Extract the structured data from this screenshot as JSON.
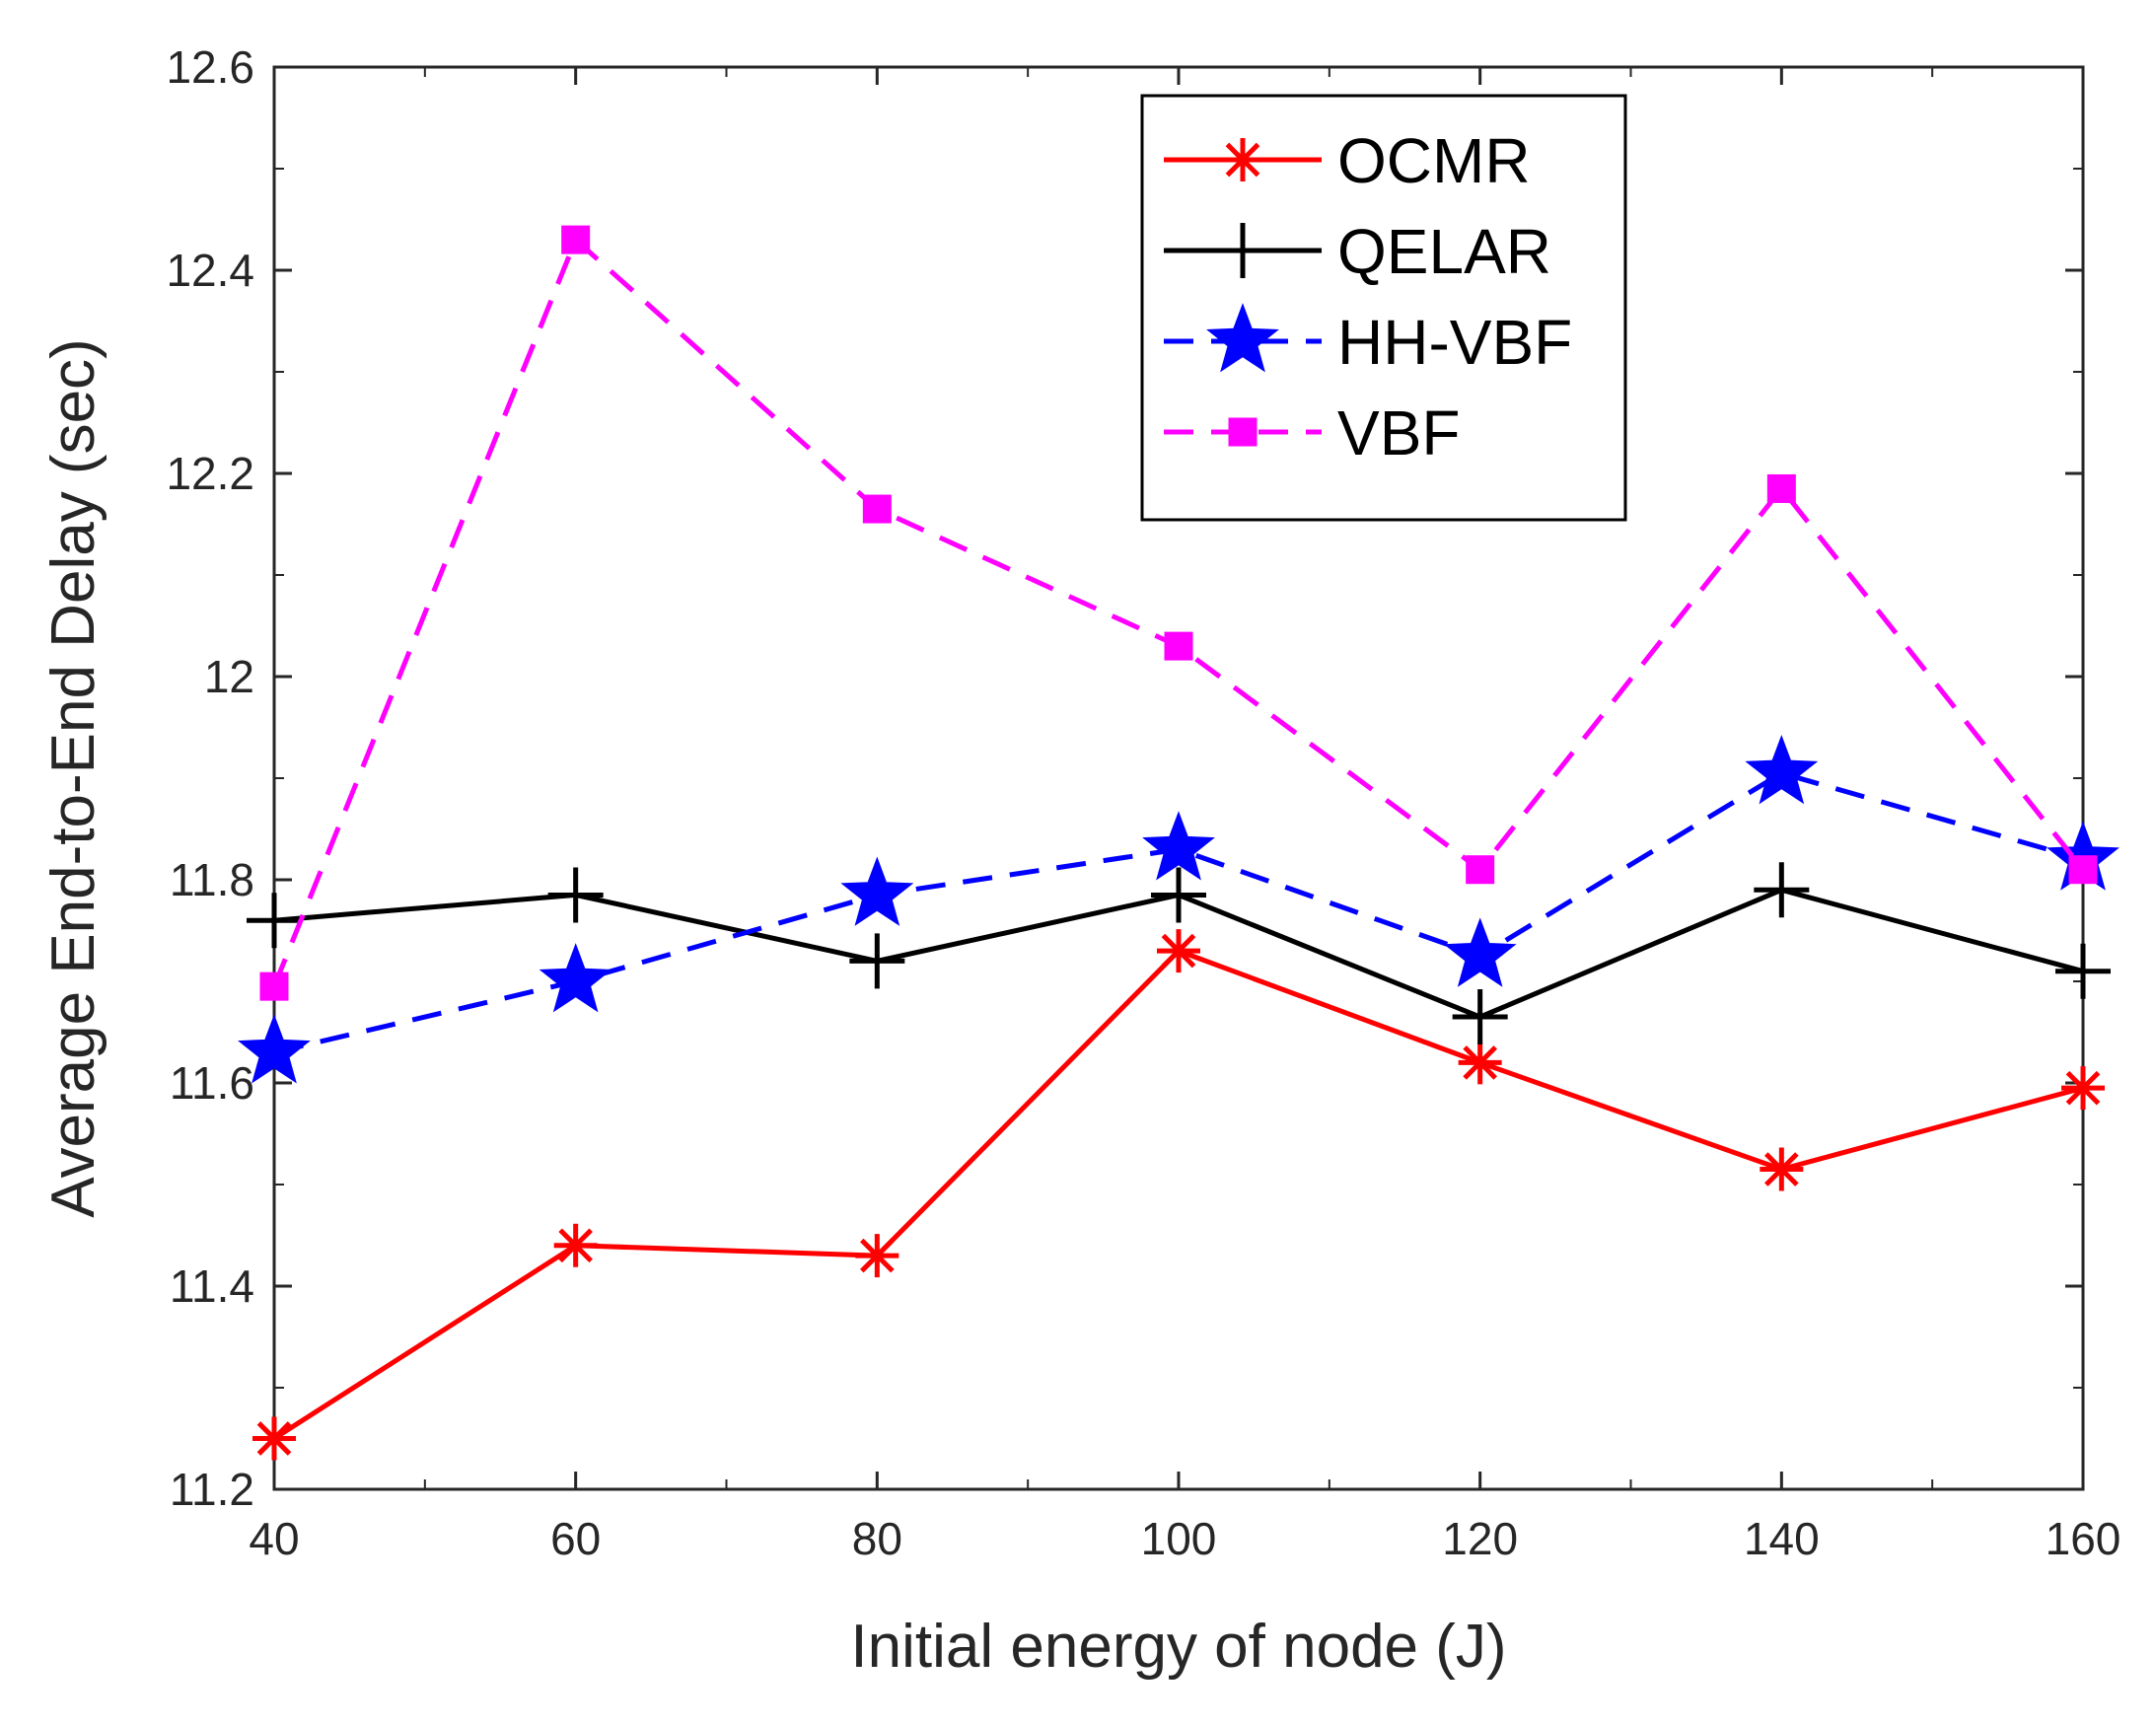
{
  "chart_data": {
    "type": "line",
    "xlabel": "Initial energy of node (J)",
    "ylabel": "Average End-to-End Delay (sec)",
    "xlim": [
      40,
      160
    ],
    "ylim": [
      11.2,
      12.6
    ],
    "x_ticks": [
      40,
      60,
      80,
      100,
      120,
      140,
      160
    ],
    "x_tick_labels": [
      "40",
      "60",
      "80",
      "100",
      "120",
      "140",
      "160"
    ],
    "y_ticks": [
      11.2,
      11.4,
      11.6,
      11.8,
      12.0,
      12.2,
      12.4,
      12.6
    ],
    "y_tick_labels": [
      "11.2",
      "11.4",
      "11.6",
      "11.8",
      "12",
      "12.2",
      "12.4",
      "12.6"
    ],
    "grid": false,
    "legend_position": "top-right",
    "x": [
      40,
      60,
      80,
      100,
      120,
      140,
      160
    ],
    "series": [
      {
        "name": "OCMR",
        "color": "#ff0000",
        "marker": "asterisk",
        "line": "solid",
        "values": [
          11.25,
          11.44,
          11.43,
          11.73,
          11.62,
          11.515,
          11.595
        ]
      },
      {
        "name": "QELAR",
        "color": "#000000",
        "marker": "plus",
        "line": "solid",
        "values": [
          11.76,
          11.785,
          11.72,
          11.785,
          11.665,
          11.79,
          11.71
        ]
      },
      {
        "name": "HH-VBF",
        "color": "#0000ff",
        "marker": "star",
        "line": "dashed",
        "values": [
          11.63,
          11.7,
          11.785,
          11.83,
          11.725,
          11.905,
          11.82
        ]
      },
      {
        "name": "VBF",
        "color": "#ff00ff",
        "marker": "square",
        "line": "dashed",
        "values": [
          11.695,
          12.43,
          12.165,
          12.03,
          11.81,
          12.185,
          11.81
        ]
      }
    ]
  }
}
